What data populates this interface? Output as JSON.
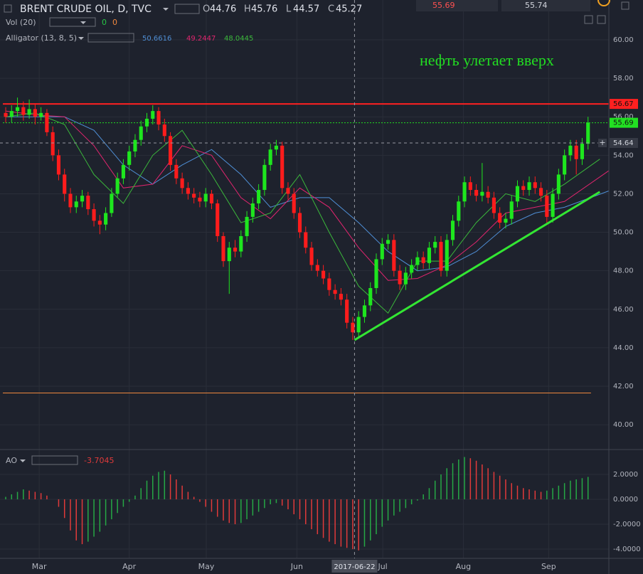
{
  "chart_data": {
    "type": "candlestick",
    "title": "BRENT CRUDE OIL, D, TVC",
    "ohlc": [
      {
        "label": "O",
        "value": 44.76
      },
      {
        "label": "H",
        "value": 45.76
      },
      {
        "label": "L",
        "value": 44.57
      },
      {
        "label": "C",
        "value": 45.27
      }
    ],
    "quotes": [
      55.69,
      55.74
    ],
    "volume": {
      "name": "Vol (20)",
      "values": [
        0,
        0
      ]
    },
    "alligator": {
      "name": "Alligator (13, 8, 5)",
      "values": [
        50.6616,
        49.2447,
        48.0445
      ]
    },
    "annotation": "нефть улетает вверх",
    "up_color": "#1ee61e",
    "down_color": "#ff1c1c",
    "candles": [
      [
        56.2,
        56.5,
        55.7,
        56.0
      ],
      [
        56.0,
        56.6,
        55.7,
        56.3
      ],
      [
        56.3,
        57.0,
        56.0,
        56.5
      ],
      [
        56.5,
        56.8,
        55.8,
        56.1
      ],
      [
        56.1,
        56.9,
        55.9,
        56.4
      ],
      [
        56.4,
        56.7,
        55.6,
        56.0
      ],
      [
        56.0,
        56.5,
        55.8,
        56.2
      ],
      [
        56.2,
        56.4,
        55.0,
        55.2
      ],
      [
        55.2,
        55.5,
        53.7,
        54.0
      ],
      [
        54.0,
        54.3,
        52.7,
        53.0
      ],
      [
        53.0,
        53.3,
        51.6,
        52.0
      ],
      [
        52.0,
        52.3,
        51.0,
        51.3
      ],
      [
        51.3,
        51.9,
        51.0,
        51.6
      ],
      [
        51.6,
        52.2,
        51.3,
        51.9
      ],
      [
        51.9,
        52.1,
        50.9,
        51.2
      ],
      [
        51.2,
        51.5,
        50.3,
        50.6
      ],
      [
        50.6,
        50.9,
        49.9,
        50.4
      ],
      [
        50.4,
        51.3,
        50.1,
        51.0
      ],
      [
        51.0,
        52.3,
        50.8,
        52.0
      ],
      [
        52.0,
        53.1,
        51.8,
        52.8
      ],
      [
        52.8,
        53.8,
        52.5,
        53.5
      ],
      [
        53.5,
        54.5,
        53.2,
        54.2
      ],
      [
        54.2,
        55.1,
        53.9,
        54.8
      ],
      [
        54.8,
        55.8,
        54.5,
        55.5
      ],
      [
        55.5,
        56.2,
        55.2,
        55.9
      ],
      [
        55.9,
        56.6,
        55.6,
        56.3
      ],
      [
        56.3,
        56.5,
        55.3,
        55.6
      ],
      [
        55.6,
        55.9,
        54.7,
        55.0
      ],
      [
        55.0,
        55.2,
        53.2,
        53.5
      ],
      [
        53.5,
        53.8,
        52.5,
        52.8
      ],
      [
        52.8,
        53.1,
        52.0,
        52.3
      ],
      [
        52.3,
        52.6,
        51.7,
        52.0
      ],
      [
        52.0,
        52.3,
        51.5,
        51.8
      ],
      [
        51.8,
        52.1,
        51.3,
        51.6
      ],
      [
        51.6,
        52.3,
        51.3,
        52.0
      ],
      [
        52.0,
        52.2,
        51.2,
        51.5
      ],
      [
        51.5,
        51.7,
        49.5,
        49.8
      ],
      [
        49.8,
        50.0,
        48.2,
        48.5
      ],
      [
        48.5,
        49.5,
        46.8,
        49.2
      ],
      [
        49.2,
        49.6,
        48.7,
        49.0
      ],
      [
        49.0,
        50.1,
        48.7,
        49.8
      ],
      [
        49.8,
        51.1,
        49.5,
        50.8
      ],
      [
        50.8,
        51.8,
        50.5,
        51.5
      ],
      [
        51.5,
        52.5,
        51.2,
        52.2
      ],
      [
        52.2,
        53.8,
        51.9,
        53.5
      ],
      [
        53.5,
        54.6,
        53.2,
        54.3
      ],
      [
        54.3,
        54.8,
        54.0,
        54.5
      ],
      [
        54.5,
        54.7,
        52.0,
        52.3
      ],
      [
        52.3,
        52.6,
        51.7,
        52.0
      ],
      [
        52.0,
        52.3,
        50.7,
        51.0
      ],
      [
        51.0,
        51.3,
        49.7,
        50.0
      ],
      [
        50.0,
        50.3,
        48.9,
        49.2
      ],
      [
        49.2,
        49.5,
        48.0,
        48.3
      ],
      [
        48.3,
        48.6,
        47.7,
        48.0
      ],
      [
        48.0,
        48.3,
        47.3,
        47.6
      ],
      [
        47.6,
        47.9,
        46.7,
        47.0
      ],
      [
        47.0,
        47.3,
        46.5,
        46.8
      ],
      [
        46.8,
        47.1,
        46.2,
        46.5
      ],
      [
        46.5,
        46.8,
        45.0,
        45.3
      ],
      [
        45.3,
        45.6,
        44.4,
        44.8
      ],
      [
        44.8,
        45.9,
        44.5,
        45.6
      ],
      [
        45.6,
        46.5,
        45.3,
        46.2
      ],
      [
        46.2,
        47.4,
        45.9,
        47.1
      ],
      [
        47.1,
        48.9,
        46.8,
        48.6
      ],
      [
        48.6,
        49.7,
        48.3,
        49.4
      ],
      [
        49.4,
        49.9,
        49.1,
        49.6
      ],
      [
        49.6,
        49.9,
        47.7,
        48.0
      ],
      [
        48.0,
        48.3,
        47.0,
        47.3
      ],
      [
        47.3,
        48.2,
        47.0,
        47.9
      ],
      [
        47.9,
        48.6,
        47.6,
        48.3
      ],
      [
        48.3,
        49.0,
        48.0,
        48.7
      ],
      [
        48.7,
        49.0,
        48.1,
        48.4
      ],
      [
        48.4,
        49.5,
        48.1,
        49.2
      ],
      [
        49.2,
        49.8,
        48.9,
        49.5
      ],
      [
        49.5,
        49.8,
        47.7,
        48.0
      ],
      [
        48.0,
        49.9,
        47.7,
        49.6
      ],
      [
        49.6,
        50.9,
        49.3,
        50.6
      ],
      [
        50.6,
        51.9,
        50.3,
        51.6
      ],
      [
        51.6,
        52.9,
        51.3,
        52.6
      ],
      [
        52.6,
        52.9,
        51.9,
        52.2
      ],
      [
        52.2,
        52.5,
        51.6,
        51.9
      ],
      [
        51.9,
        53.6,
        51.6,
        52.1
      ],
      [
        52.1,
        52.4,
        51.5,
        51.8
      ],
      [
        51.8,
        52.1,
        50.7,
        51.0
      ],
      [
        51.0,
        51.3,
        50.2,
        50.5
      ],
      [
        50.5,
        51.0,
        50.2,
        50.7
      ],
      [
        50.7,
        51.9,
        50.4,
        51.6
      ],
      [
        51.6,
        52.7,
        51.3,
        52.4
      ],
      [
        52.4,
        52.7,
        51.9,
        52.2
      ],
      [
        52.2,
        52.9,
        51.9,
        52.6
      ],
      [
        52.6,
        52.9,
        52.0,
        52.3
      ],
      [
        52.3,
        52.6,
        51.6,
        51.9
      ],
      [
        51.9,
        52.2,
        50.5,
        50.8
      ],
      [
        50.8,
        52.3,
        50.5,
        52.0
      ],
      [
        52.0,
        53.3,
        51.7,
        53.0
      ],
      [
        53.0,
        54.3,
        52.7,
        54.0
      ],
      [
        54.0,
        54.8,
        53.7,
        54.5
      ],
      [
        54.5,
        54.8,
        53.0,
        53.8
      ],
      [
        53.8,
        54.9,
        53.5,
        54.6
      ],
      [
        54.6,
        56.0,
        54.3,
        55.7
      ]
    ],
    "lines": [
      {
        "color": "#4f8fd6",
        "x": [
          0,
          5,
          10,
          15,
          20,
          25,
          30,
          35,
          40,
          45,
          50,
          55,
          60,
          65,
          70,
          75,
          80,
          85,
          90,
          95,
          103
        ],
        "values": [
          56.0,
          56.0,
          56.0,
          55.3,
          53.5,
          52.5,
          53.5,
          54.3,
          53.0,
          51.3,
          51.8,
          51.8,
          50.5,
          49.0,
          48.0,
          48.2,
          49.0,
          50.3,
          51.0,
          51.3,
          52.2
        ]
      },
      {
        "color": "#e0256e",
        "x": [
          0,
          5,
          10,
          15,
          20,
          25,
          30,
          35,
          40,
          45,
          50,
          55,
          60,
          65,
          70,
          75,
          80,
          85,
          90,
          95,
          103
        ],
        "values": [
          56.3,
          56.1,
          56.0,
          54.5,
          52.3,
          52.5,
          54.5,
          54.0,
          51.8,
          50.7,
          52.3,
          51.3,
          49.2,
          47.5,
          47.6,
          48.3,
          49.5,
          51.0,
          51.3,
          51.6,
          53.3
        ]
      },
      {
        "color": "#3bb83b",
        "x": [
          0,
          5,
          10,
          15,
          20,
          25,
          30,
          35,
          40,
          45,
          50,
          55,
          60,
          65,
          70,
          75,
          80,
          85,
          90,
          95,
          101
        ],
        "values": [
          56.0,
          56.2,
          55.6,
          53.0,
          51.5,
          54.0,
          55.3,
          53.0,
          50.5,
          51.0,
          53.0,
          50.0,
          47.2,
          45.8,
          48.5,
          48.5,
          50.5,
          52.0,
          51.6,
          52.5,
          53.8
        ]
      }
    ],
    "hlines": [
      {
        "value": 56.67,
        "color": "#ff2020",
        "style": "solid",
        "axis_label": true
      },
      {
        "value": 55.69,
        "color": "#22e022",
        "style": "dotted",
        "axis_label": true
      },
      {
        "value": 41.65,
        "color": "#f0883e",
        "style": "solid",
        "axis_label": false
      }
    ],
    "trendline": {
      "x": [
        59.3,
        101
      ],
      "values": [
        44.4,
        52.1
      ],
      "color": "#33e633"
    },
    "crosshair": {
      "x": 59.3,
      "value": 54.64,
      "date": "2017-06-22"
    },
    "xlim": [
      -0.97,
      102.54
    ],
    "xticks": [
      {
        "value": 5.7,
        "label": "Mar"
      },
      {
        "value": 21,
        "label": "Apr"
      },
      {
        "value": 34.1,
        "label": "May"
      },
      {
        "value": 49.5,
        "label": "Jun"
      },
      {
        "value": 64.1,
        "label": "Jul"
      },
      {
        "value": 77.8,
        "label": "Aug"
      },
      {
        "value": 92.3,
        "label": "Sep"
      }
    ],
    "ylim": [
      38.71,
      62.07
    ],
    "yticks": [
      {
        "value": 40,
        "label": "40.00"
      },
      {
        "value": 42,
        "label": "42.00"
      },
      {
        "value": 44,
        "label": "44.00"
      },
      {
        "value": 46,
        "label": "46.00"
      },
      {
        "value": 48,
        "label": "48.00"
      },
      {
        "value": 50,
        "label": "50.00"
      },
      {
        "value": 52,
        "label": "52.00"
      },
      {
        "value": 54,
        "label": "54.00"
      },
      {
        "value": 56,
        "label": "56.00"
      },
      {
        "value": 58,
        "label": "58.00"
      },
      {
        "value": 60,
        "label": "60.00"
      }
    ],
    "ao": {
      "name": "AO",
      "value": -3.7045,
      "up_color": "#26a845",
      "down_color": "#e03a3a",
      "values": [
        0.2,
        0.4,
        0.6,
        0.8,
        0.7,
        0.6,
        0.5,
        0.3,
        0.0,
        -0.6,
        -1.5,
        -2.5,
        -3.3,
        -3.6,
        -3.4,
        -3.0,
        -2.6,
        -2.1,
        -1.6,
        -1.1,
        -0.6,
        -0.2,
        0.3,
        0.9,
        1.5,
        1.9,
        2.2,
        2.3,
        2.0,
        1.6,
        1.1,
        0.6,
        0.2,
        -0.2,
        -0.6,
        -1.0,
        -1.4,
        -1.7,
        -1.9,
        -2.0,
        -1.9,
        -1.6,
        -1.3,
        -1.0,
        -0.7,
        -0.4,
        -0.3,
        -0.5,
        -0.8,
        -1.2,
        -1.6,
        -2.0,
        -2.4,
        -2.8,
        -3.1,
        -3.4,
        -3.6,
        -3.8,
        -3.9,
        -4.0,
        -4.1,
        -3.8,
        -3.3,
        -2.8,
        -2.2,
        -1.7,
        -1.3,
        -1.0,
        -0.7,
        -0.4,
        -0.1,
        0.4,
        0.9,
        1.5,
        2.0,
        2.5,
        2.9,
        3.2,
        3.4,
        3.3,
        3.1,
        2.8,
        2.5,
        2.2,
        1.9,
        1.6,
        1.3,
        1.1,
        0.9,
        0.8,
        0.7,
        0.6,
        0.7,
        0.9,
        1.1,
        1.3,
        1.5,
        1.6,
        1.7,
        1.8
      ],
      "ylim": [
        -4.74,
        4.0
      ],
      "yticks": [
        {
          "value": 2,
          "label": "2.0000"
        },
        {
          "value": 0,
          "label": "0.0000"
        },
        {
          "value": -2,
          "label": "-2.0000"
        },
        {
          "value": -4,
          "label": "-4.0000"
        }
      ]
    }
  }
}
